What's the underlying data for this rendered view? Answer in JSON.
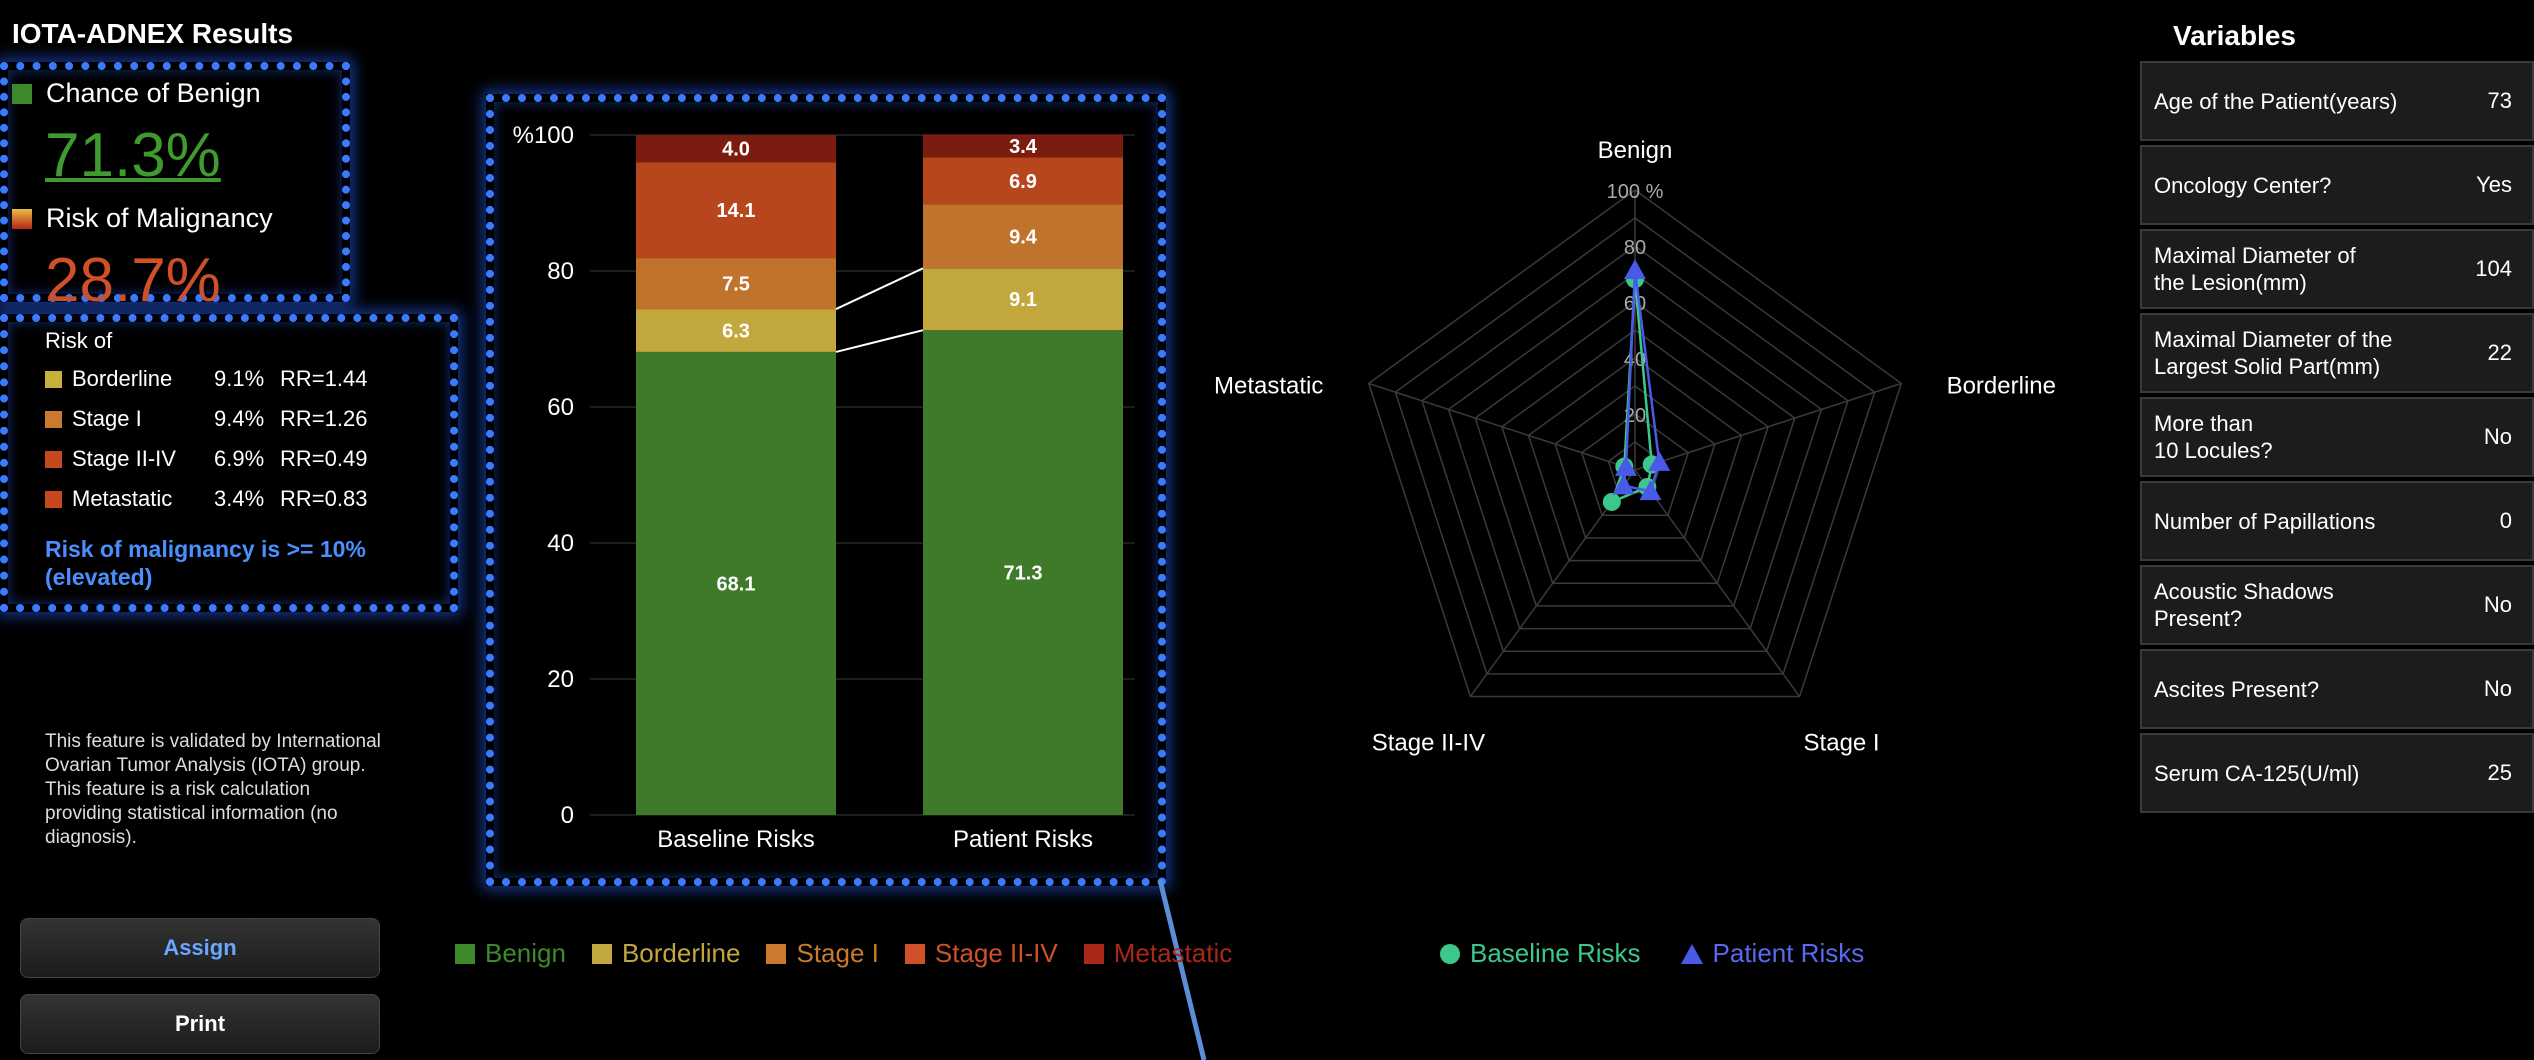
{
  "app": {
    "title": "IOTA-ADNEX Results"
  },
  "summary": {
    "benign_label": "Chance of Benign",
    "benign_value": "71.3%",
    "malignancy_label": "Risk of Malignancy",
    "malignancy_value": "28.7%"
  },
  "risk_of": {
    "heading": "Risk of",
    "rows": [
      {
        "name": "Borderline",
        "percent": "9.1%",
        "rr": "RR=1.44",
        "color": "#c8b03a"
      },
      {
        "name": "Stage I",
        "percent": "9.4%",
        "rr": "RR=1.26",
        "color": "#c97a2c"
      },
      {
        "name": "Stage II-IV",
        "percent": "6.9%",
        "rr": "RR=0.49",
        "color": "#c8481e"
      },
      {
        "name": "Metastatic",
        "percent": "3.4%",
        "rr": "RR=0.83",
        "color": "#c8481e"
      }
    ],
    "note": "Risk of malignancy is >= 10% (elevated)"
  },
  "disclaimer": "This feature is validated by International Ovarian Tumor Analysis (IOTA) group. This feature is a risk calculation providing statistical information (no diagnosis).",
  "buttons": {
    "assign": "Assign",
    "print": "Print"
  },
  "colors": {
    "benign": "#3e7a2a",
    "borderline": "#c2a83c",
    "stage1": "#c0732c",
    "stage2_4": "#b8461d",
    "metastatic": "#7a1c10",
    "baseline": "#3cc88a",
    "patient": "#4a5ae8",
    "accent": "#3a7bff"
  },
  "bar_legend": [
    {
      "label": "Benign",
      "color": "#3e8a2a"
    },
    {
      "label": "Borderline",
      "color": "#c2a83c"
    },
    {
      "label": "Stage I",
      "color": "#c97a2c"
    },
    {
      "label": "Stage II-IV",
      "color": "#d0502a"
    },
    {
      "label": "Metastatic",
      "color": "#a8281a"
    }
  ],
  "radar_legend": [
    {
      "label": "Baseline Risks",
      "color": "#3cc88a",
      "shape": "circle"
    },
    {
      "label": "Patient Risks",
      "color": "#4a5ae8",
      "shape": "triangle"
    }
  ],
  "chart_data": [
    {
      "type": "bar",
      "stacked": true,
      "categories": [
        "Baseline Risks",
        "Patient Risks"
      ],
      "series": [
        {
          "name": "Benign",
          "values": [
            68.1,
            71.3
          ]
        },
        {
          "name": "Borderline",
          "values": [
            6.3,
            9.1
          ]
        },
        {
          "name": "Stage I",
          "values": [
            7.5,
            9.4
          ]
        },
        {
          "name": "Stage II-IV",
          "values": [
            14.1,
            6.9
          ]
        },
        {
          "name": "Metastatic",
          "values": [
            4.0,
            3.4
          ]
        }
      ],
      "ylabel": "%",
      "ylim": [
        0,
        100
      ],
      "yticks": [
        "0",
        "20",
        "40",
        "60",
        "80",
        "100"
      ],
      "grid": true
    },
    {
      "type": "radar",
      "axes": [
        "Benign",
        "Borderline",
        "Stage I",
        "Stage II-IV",
        "Metastatic"
      ],
      "rmax": 100,
      "ring_labels": [
        "20",
        "40",
        "60",
        "80",
        "100 %"
      ],
      "series": [
        {
          "name": "Baseline Risks",
          "values": [
            68.1,
            6.3,
            7.5,
            14.1,
            4.0
          ]
        },
        {
          "name": "Patient Risks",
          "values": [
            71.3,
            9.1,
            9.4,
            6.9,
            3.4
          ]
        }
      ]
    }
  ],
  "variables": {
    "title": "Variables",
    "rows": [
      {
        "label": "Age of the Patient(years)",
        "value": "73"
      },
      {
        "label": "Oncology Center?",
        "value": "Yes"
      },
      {
        "label": "Maximal Diameter of\nthe Lesion(mm)",
        "value": "104"
      },
      {
        "label": "Maximal Diameter of the\nLargest Solid Part(mm)",
        "value": "22"
      },
      {
        "label": "More than\n10 Locules?",
        "value": "No"
      },
      {
        "label": "Number of Papillations",
        "value": "0"
      },
      {
        "label": "Acoustic Shadows\nPresent?",
        "value": "No"
      },
      {
        "label": "Ascites Present?",
        "value": "No"
      },
      {
        "label": "Serum CA-125(U/ml)",
        "value": "25"
      }
    ]
  }
}
